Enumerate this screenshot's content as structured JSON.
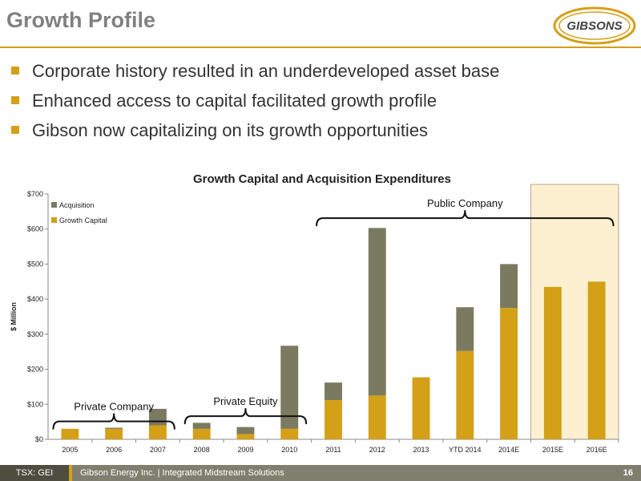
{
  "slide": {
    "title": "Growth Profile",
    "logo_text": "GIBSONS",
    "bullets": [
      "Corporate history resulted in an underdeveloped asset base",
      "Enhanced access to capital facilitated growth profile",
      "Gibson now capitalizing on its growth opportunities"
    ]
  },
  "footer": {
    "ticker": "TSX: GEI",
    "company": "Gibson Energy Inc.  |  Integrated Midstream Solutions",
    "page_number": "16"
  },
  "colors": {
    "accent": "#d4a017",
    "acquisition": "#7a7a60",
    "growth": "#d4a017",
    "highlight": "#fdf0d0"
  },
  "chart_data": {
    "type": "bar",
    "stacked": true,
    "title": "Growth Capital and Acquisition Expenditures",
    "ylabel": "$ Million",
    "ylim": [
      0,
      700
    ],
    "yticks": [
      "$0",
      "$100",
      "$200",
      "$300",
      "$400",
      "$500",
      "$600",
      "$700"
    ],
    "categories": [
      "2005",
      "2006",
      "2007",
      "2008",
      "2009",
      "2010",
      "2011",
      "2012",
      "2013",
      "YTD 2014",
      "2014E",
      "2015E",
      "2016E"
    ],
    "series": [
      {
        "name": "Growth Capital",
        "values": [
          30,
          30,
          40,
          30,
          15,
          30,
          112,
          125,
          177,
          252,
          375,
          435,
          450
        ]
      },
      {
        "name": "Acquisition",
        "values": [
          0,
          3,
          47,
          17,
          20,
          237,
          50,
          478,
          0,
          125,
          125,
          0,
          0
        ]
      }
    ],
    "legend": [
      "Acquisition",
      "Growth Capital"
    ],
    "legend_position": "top-left",
    "highlighted_categories": [
      "2015E",
      "2016E"
    ],
    "annotations": [
      {
        "label": "Private Company",
        "from": "2005",
        "to": "2007"
      },
      {
        "label": "Private Equity",
        "from": "2008",
        "to": "2010"
      },
      {
        "label": "Public Company",
        "from": "2011",
        "to": "2016E"
      }
    ]
  }
}
